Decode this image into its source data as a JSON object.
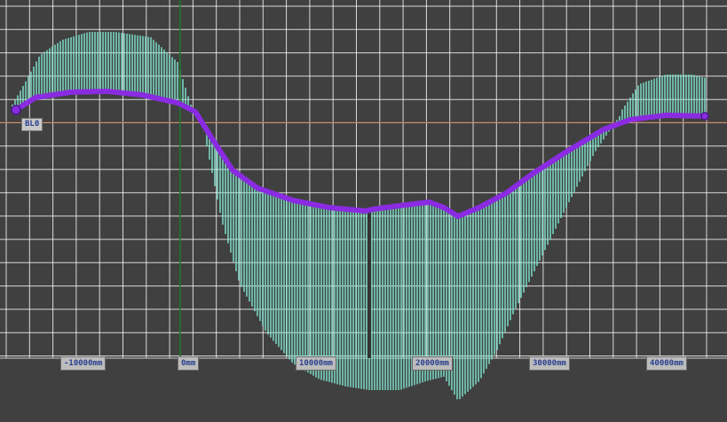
{
  "viewport": {
    "background_color": "#404040",
    "grid_color": "#ffffff",
    "origin_line_color": "#1f7a2a",
    "baseline_color": "#a0522d",
    "profile_fill_color": "#7fe3cf",
    "curve_color": "#8a2be2",
    "x_ticks_mm": [
      -10000,
      0,
      10000,
      20000,
      30000,
      40000
    ],
    "x_tick_labels": [
      "-10000mm",
      "0mm",
      "10000mm",
      "20000mm",
      "30000mm",
      "40000mm"
    ],
    "baseline_label": "BL0"
  }
}
